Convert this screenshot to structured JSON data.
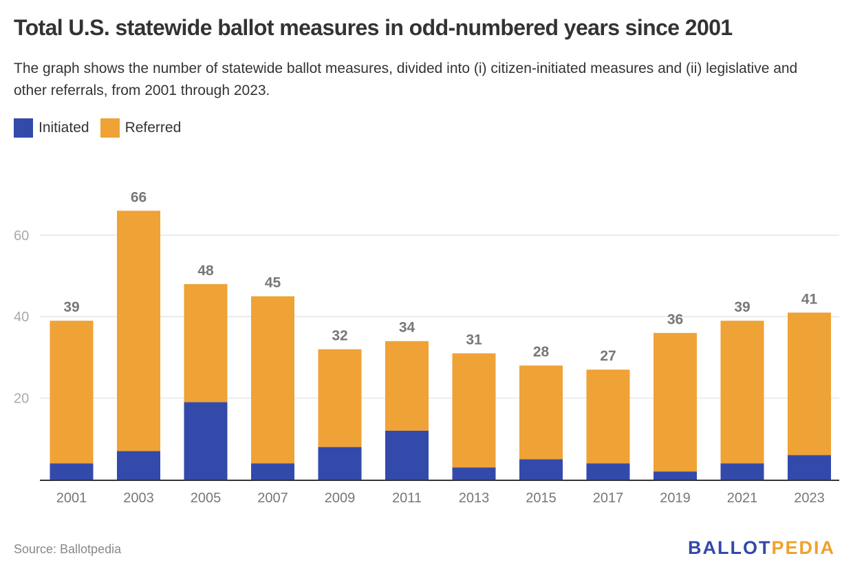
{
  "header": {
    "title": "Total U.S. statewide ballot measures in odd-numbered years since 2001",
    "subtitle": "The graph shows the number of statewide ballot measures, divided into (i) citizen-initiated measures and (ii) legislative and other referrals, from 2001 through 2023."
  },
  "legend": [
    {
      "label": "Initiated",
      "color": "#334aab"
    },
    {
      "label": "Referred",
      "color": "#efa236"
    }
  ],
  "footer": {
    "source": "Source: Ballotpedia",
    "logo_part1": "BALLOT",
    "logo_part2": "PEDIA"
  },
  "chart_data": {
    "type": "bar",
    "stacked": true,
    "title": "Total U.S. statewide ballot measures in odd-numbered years since 2001",
    "xlabel": "",
    "ylabel": "",
    "categories": [
      "2001",
      "2003",
      "2005",
      "2007",
      "2009",
      "2011",
      "2013",
      "2015",
      "2017",
      "2019",
      "2021",
      "2023"
    ],
    "series": [
      {
        "name": "Initiated",
        "color": "#334aab",
        "values": [
          4,
          7,
          19,
          4,
          8,
          12,
          3,
          5,
          4,
          2,
          4,
          6
        ]
      },
      {
        "name": "Referred",
        "color": "#efa236",
        "values": [
          35,
          59,
          29,
          41,
          24,
          22,
          28,
          23,
          23,
          34,
          35,
          35
        ]
      }
    ],
    "totals": [
      39,
      66,
      48,
      45,
      32,
      34,
      31,
      28,
      27,
      36,
      39,
      41
    ],
    "ylim": [
      0,
      66
    ],
    "yticks": [
      20,
      40,
      60
    ],
    "grid": true,
    "legend_position": "top-left"
  }
}
